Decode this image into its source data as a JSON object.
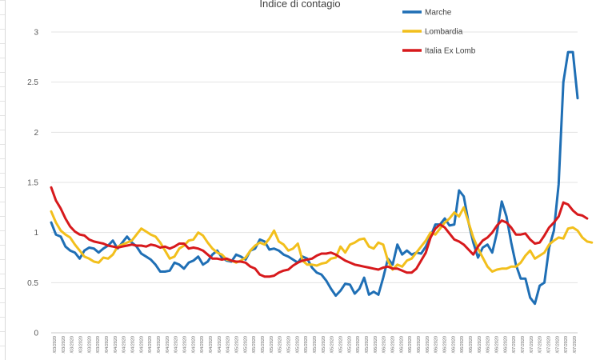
{
  "chart_data": {
    "type": "line",
    "title": "Indice di contagio",
    "xlabel": "",
    "ylabel": "",
    "ylim": [
      0,
      3
    ],
    "yticks": [
      "0",
      "0.5",
      "1",
      "1.5",
      "2",
      "2.5",
      "3"
    ],
    "legend_position": "top-right",
    "grid": true,
    "x_labels": [
      "/03/2020",
      "/03/2020",
      "/03/2020",
      "/03/2020",
      "/03/2020",
      "/03/2020",
      "/04/2020",
      "/04/2020",
      "/04/2020",
      "/04/2020",
      "/04/2020",
      "/04/2020",
      "/04/2020",
      "/04/2020",
      "/04/2020",
      "/04/2020",
      "/04/2020",
      "/04/2020",
      "/04/2020",
      "/04/2020",
      "/04/2020",
      "/05/2020",
      "/05/2020",
      "/05/2020",
      "/05/2020",
      "/05/2020",
      "/05/2020",
      "/05/2020",
      "/05/2020",
      "/05/2020",
      "/05/2020",
      "/05/2020",
      "/05/2020",
      "/05/2020",
      "/05/2020",
      "/05/2020",
      "/05/2020",
      "/06/2020",
      "/06/2020",
      "/06/2020",
      "/06/2020",
      "/06/2020",
      "/06/2020",
      "/06/2020",
      "/06/2020",
      "/06/2020",
      "/06/2020",
      "/06/2020",
      "/06/2020",
      "/06/2020",
      "/06/2020",
      "/06/2020",
      "/06/2020",
      "/07/2020",
      "/07/2020",
      "/07/2020",
      "/07/2020",
      "/07/2020",
      "/07/2020",
      "/07/2020",
      "/07/2020"
    ],
    "series": [
      {
        "name": "Marche",
        "color": "#1f6fb5",
        "values": [
          1.1,
          0.98,
          0.96,
          0.86,
          0.82,
          0.8,
          0.74,
          0.82,
          0.85,
          0.84,
          0.8,
          0.84,
          0.87,
          0.92,
          0.84,
          0.9,
          0.96,
          0.9,
          0.86,
          0.79,
          0.76,
          0.73,
          0.68,
          0.61,
          0.61,
          0.62,
          0.7,
          0.68,
          0.64,
          0.7,
          0.72,
          0.76,
          0.68,
          0.71,
          0.78,
          0.82,
          0.75,
          0.72,
          0.71,
          0.78,
          0.76,
          0.73,
          0.82,
          0.84,
          0.93,
          0.91,
          0.83,
          0.84,
          0.82,
          0.78,
          0.76,
          0.73,
          0.7,
          0.76,
          0.74,
          0.65,
          0.6,
          0.58,
          0.52,
          0.44,
          0.37,
          0.42,
          0.49,
          0.48,
          0.39,
          0.44,
          0.55,
          0.38,
          0.41,
          0.38,
          0.55,
          0.74,
          0.68,
          0.88,
          0.78,
          0.82,
          0.78,
          0.8,
          0.79,
          0.86,
          0.96,
          1.08,
          1.08,
          1.14,
          1.07,
          1.08,
          1.42,
          1.36,
          1.1,
          0.9,
          0.75,
          0.85,
          0.88,
          0.8,
          1.0,
          1.31,
          1.16,
          0.9,
          0.68,
          0.54,
          0.54,
          0.35,
          0.29,
          0.47,
          0.5,
          0.85,
          1.02,
          1.48,
          2.5,
          2.8,
          2.8,
          2.34
        ]
      },
      {
        "name": "Lombardia",
        "color": "#f2bf1c",
        "values": [
          1.21,
          1.1,
          1.02,
          0.98,
          0.95,
          0.88,
          0.82,
          0.76,
          0.74,
          0.71,
          0.7,
          0.75,
          0.74,
          0.78,
          0.86,
          0.88,
          0.9,
          0.92,
          0.98,
          1.04,
          1.01,
          0.98,
          0.96,
          0.9,
          0.82,
          0.74,
          0.76,
          0.84,
          0.87,
          0.92,
          0.93,
          1.0,
          0.97,
          0.9,
          0.84,
          0.8,
          0.78,
          0.73,
          0.72,
          0.7,
          0.72,
          0.75,
          0.82,
          0.87,
          0.9,
          0.88,
          0.94,
          1.02,
          0.91,
          0.88,
          0.82,
          0.84,
          0.89,
          0.72,
          0.68,
          0.68,
          0.67,
          0.69,
          0.7,
          0.74,
          0.75,
          0.86,
          0.8,
          0.88,
          0.9,
          0.93,
          0.94,
          0.86,
          0.84,
          0.9,
          0.88,
          0.72,
          0.63,
          0.68,
          0.66,
          0.72,
          0.74,
          0.8,
          0.86,
          0.92,
          1.0,
          0.98,
          1.04,
          1.1,
          1.14,
          1.2,
          1.16,
          1.25,
          1.1,
          0.95,
          0.84,
          0.75,
          0.66,
          0.61,
          0.63,
          0.64,
          0.64,
          0.66,
          0.66,
          0.7,
          0.77,
          0.82,
          0.74,
          0.77,
          0.8,
          0.88,
          0.92,
          0.95,
          0.94,
          1.04,
          1.05,
          1.02,
          0.95,
          0.91,
          0.9
        ]
      },
      {
        "name": "Italia Ex Lomb",
        "color": "#d7191c",
        "values": [
          1.45,
          1.32,
          1.24,
          1.14,
          1.06,
          1.01,
          0.98,
          0.97,
          0.93,
          0.91,
          0.9,
          0.89,
          0.87,
          0.86,
          0.85,
          0.86,
          0.87,
          0.88,
          0.87,
          0.87,
          0.86,
          0.88,
          0.87,
          0.85,
          0.86,
          0.84,
          0.86,
          0.89,
          0.89,
          0.84,
          0.85,
          0.84,
          0.82,
          0.78,
          0.74,
          0.74,
          0.73,
          0.74,
          0.72,
          0.71,
          0.71,
          0.7,
          0.66,
          0.64,
          0.58,
          0.56,
          0.56,
          0.57,
          0.6,
          0.62,
          0.63,
          0.67,
          0.7,
          0.72,
          0.73,
          0.74,
          0.77,
          0.79,
          0.79,
          0.8,
          0.78,
          0.75,
          0.72,
          0.7,
          0.68,
          0.67,
          0.66,
          0.65,
          0.64,
          0.63,
          0.65,
          0.66,
          0.64,
          0.64,
          0.62,
          0.6,
          0.6,
          0.64,
          0.72,
          0.8,
          0.95,
          1.04,
          1.08,
          1.05,
          0.99,
          0.93,
          0.91,
          0.88,
          0.83,
          0.78,
          0.86,
          0.92,
          0.95,
          1.0,
          1.07,
          1.12,
          1.1,
          1.05,
          0.98,
          0.98,
          0.99,
          0.93,
          0.89,
          0.9,
          0.97,
          1.05,
          1.1,
          1.16,
          1.3,
          1.28,
          1.22,
          1.18,
          1.17,
          1.14
        ]
      }
    ]
  }
}
